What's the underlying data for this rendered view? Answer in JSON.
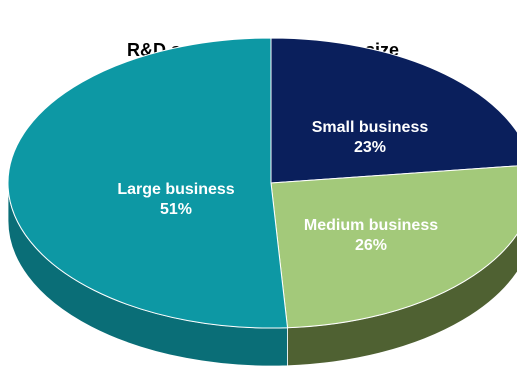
{
  "chart_data": {
    "type": "pie",
    "title": "R&D spending by business size",
    "slices": [
      {
        "label": "Small business",
        "value": 23,
        "value_label": "23%",
        "color": "#0a1f5c",
        "side_color": "#061238"
      },
      {
        "label": "Medium business",
        "value": 26,
        "value_label": "26%",
        "color": "#a3c97a",
        "side_color": "#4f6132"
      },
      {
        "label": "Large business",
        "value": 51,
        "value_label": "51%",
        "color": "#0d98a4",
        "side_color": "#0a6e77"
      }
    ],
    "legend": "none",
    "style": "3d"
  }
}
